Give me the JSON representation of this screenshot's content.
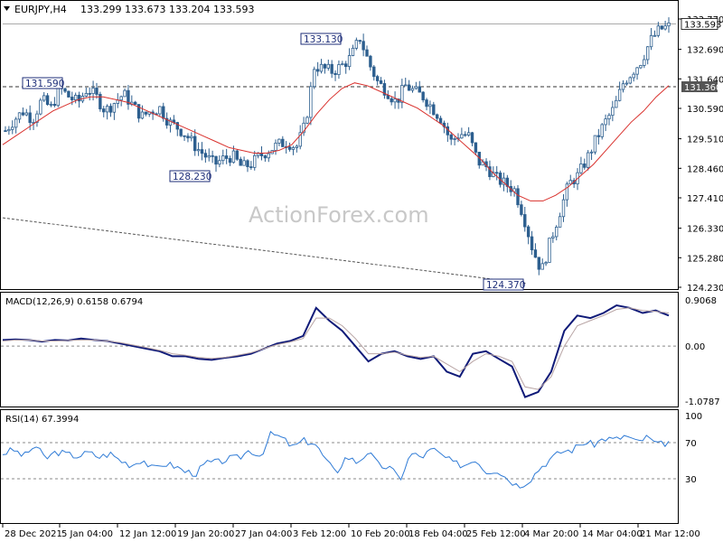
{
  "header": {
    "symbol": "EURJPY,H4",
    "ohlc": "133.299 133.673 133.204 133.593"
  },
  "watermark": "ActionForex.com",
  "colors": {
    "candle": "#2d5f8f",
    "ma": "#d9312d",
    "macd_line": "#0f1a78",
    "macd_signal": "#b8a4a4",
    "rsi": "#2f7bd6",
    "label_border": "#1f2f7a",
    "grid": "#888888"
  },
  "chart_data": [
    {
      "panel": "price",
      "type": "candlestick",
      "ylim": [
        124.23,
        133.77
      ],
      "yticks": [
        "133.770",
        "132.690",
        "131.640",
        "130.590",
        "129.510",
        "128.460",
        "127.410",
        "126.330",
        "125.280",
        "124.230"
      ],
      "yticks_values": [
        133.77,
        132.69,
        131.64,
        130.59,
        129.51,
        128.46,
        127.41,
        126.33,
        125.28,
        124.23
      ],
      "current_price": "133.593",
      "current_value": 133.593,
      "level_label": "131.360",
      "level_value": 131.36,
      "annotations": [
        {
          "text": "131.590",
          "value": 131.59
        },
        {
          "text": "133.130",
          "value": 133.13
        },
        {
          "text": "128.230",
          "value": 128.23
        },
        {
          "text": "124.370",
          "value": 124.37
        }
      ],
      "close_path": [
        129.8,
        130.2,
        130.5,
        130.2,
        130.9,
        130.6,
        131.3,
        131.0,
        130.8,
        131.3,
        131.0,
        130.5,
        130.8,
        131.1,
        130.7,
        130.3,
        130.5,
        130.6,
        130.1,
        129.9,
        129.6,
        129.2,
        128.9,
        128.6,
        128.8,
        128.9,
        128.5,
        128.6,
        128.9,
        129.1,
        129.3,
        129.4,
        129.2,
        130.0,
        132.1,
        132.0,
        131.9,
        132.1,
        132.4,
        133.1,
        132.2,
        131.5,
        131.2,
        130.8,
        131.4,
        131.2,
        131.0,
        130.6,
        130.2,
        129.4,
        129.7,
        129.6,
        128.7,
        128.5,
        128.1,
        127.9,
        127.7,
        126.8,
        125.6,
        124.8,
        125.9,
        126.9,
        127.9,
        128.2,
        128.8,
        129.5,
        130.1,
        130.6,
        131.5,
        131.9,
        132.3,
        133.0,
        133.4,
        133.5
      ],
      "ma_path": [
        129.3,
        129.6,
        129.9,
        130.2,
        130.5,
        130.7,
        130.9,
        131.0,
        131.0,
        130.9,
        130.8,
        130.6,
        130.4,
        130.2,
        130.0,
        129.8,
        129.6,
        129.4,
        129.2,
        129.1,
        129.0,
        129.0,
        129.1,
        129.3,
        129.8,
        130.4,
        130.9,
        131.3,
        131.5,
        131.4,
        131.2,
        131.0,
        130.8,
        130.6,
        130.3,
        130.0,
        129.6,
        129.2,
        128.8,
        128.3,
        127.9,
        127.5,
        127.3,
        127.3,
        127.5,
        127.8,
        128.2,
        128.6,
        129.1,
        129.6,
        130.1,
        130.5,
        131.0,
        131.4
      ],
      "trendline": {
        "from": 126.7,
        "to": 124.37
      }
    },
    {
      "panel": "macd",
      "type": "line",
      "label": "MACD(12,26,9) 0.6158 0.6794",
      "ylim": [
        -1.0787,
        0.9068
      ],
      "yticks": [
        "0.9068",
        "0.00",
        "-1.0787"
      ],
      "yticks_values": [
        0.9068,
        0.0,
        -1.0787
      ],
      "series": [
        {
          "values": [
            0.12,
            0.13,
            0.12,
            0.09,
            0.12,
            0.11,
            0.15,
            0.12,
            0.1,
            0.05,
            0.0,
            -0.05,
            -0.1,
            -0.2,
            -0.2,
            -0.25,
            -0.27,
            -0.23,
            -0.2,
            -0.15,
            -0.05,
            0.05,
            0.1,
            0.2,
            0.75,
            0.5,
            0.3,
            0.0,
            -0.3,
            -0.15,
            -0.1,
            -0.2,
            -0.25,
            -0.2,
            -0.5,
            -0.6,
            -0.15,
            -0.1,
            -0.25,
            -0.4,
            -1.0,
            -0.9,
            -0.5,
            0.3,
            0.6,
            0.55,
            0.65,
            0.8,
            0.75,
            0.65,
            0.7,
            0.6
          ]
        },
        {
          "values": [
            0.1,
            0.12,
            0.12,
            0.1,
            0.1,
            0.11,
            0.12,
            0.12,
            0.1,
            0.07,
            0.02,
            -0.03,
            -0.08,
            -0.15,
            -0.18,
            -0.22,
            -0.24,
            -0.22,
            -0.18,
            -0.13,
            -0.05,
            0.03,
            0.08,
            0.15,
            0.55,
            0.55,
            0.4,
            0.15,
            -0.15,
            -0.15,
            -0.12,
            -0.18,
            -0.22,
            -0.2,
            -0.35,
            -0.5,
            -0.3,
            -0.15,
            -0.2,
            -0.3,
            -0.8,
            -0.85,
            -0.6,
            0.0,
            0.4,
            0.5,
            0.6,
            0.72,
            0.75,
            0.7,
            0.68,
            0.65
          ]
        }
      ]
    },
    {
      "panel": "rsi",
      "type": "line",
      "label": "RSI(14) 67.3994",
      "ylim": [
        0,
        100
      ],
      "yticks": [
        "100",
        "70",
        "30",
        "0"
      ],
      "yticks_values": [
        100,
        70,
        30,
        0
      ],
      "levels": [
        70,
        30
      ],
      "values": [
        58,
        62,
        55,
        67,
        52,
        60,
        57,
        55,
        59,
        54,
        58,
        50,
        45,
        52,
        40,
        47,
        44,
        38,
        36,
        48,
        48,
        52,
        53,
        62,
        55,
        80,
        75,
        65,
        72,
        70,
        52,
        36,
        55,
        48,
        60,
        45,
        42,
        30,
        58,
        54,
        63,
        55,
        47,
        45,
        52,
        38,
        40,
        30,
        22,
        28,
        42,
        52,
        60,
        62,
        70,
        68,
        75,
        73,
        78,
        70,
        76,
        67,
        71
      ]
    }
  ],
  "x_axis": {
    "labels": [
      "28 Dec 2021",
      "5 Jan 04:00",
      "12 Jan 12:00",
      "19 Jan 20:00",
      "27 Jan 04:00",
      "3 Feb 12:00",
      "10 Feb 20:00",
      "18 Feb 04:00",
      "25 Feb 12:00",
      "4 Mar 20:00",
      "14 Mar 04:00",
      "21 Mar 12:00"
    ]
  }
}
